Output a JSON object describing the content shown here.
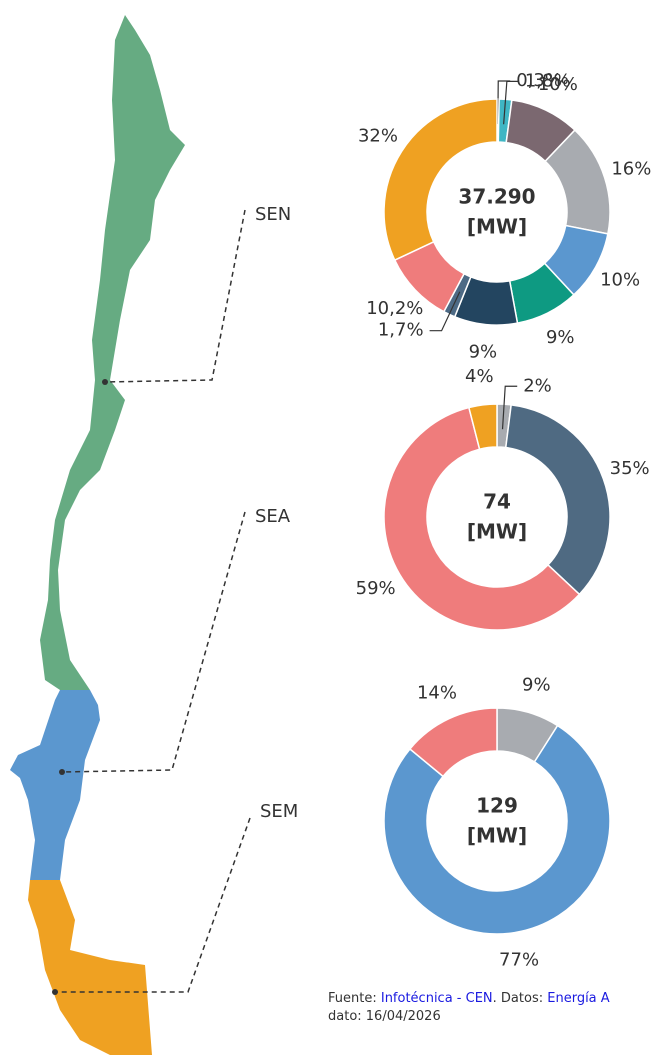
{
  "chart_data": [
    {
      "type": "donut",
      "title": "SEN",
      "center_text": [
        "37.290",
        "[MW]"
      ],
      "values": [
        0.3,
        1.8,
        10,
        16,
        10,
        9,
        9,
        1.7,
        10.2,
        32
      ],
      "value_labels": [
        "0,3%",
        "1,8%",
        "10%",
        "16%",
        "10%",
        "9%",
        "9%",
        "1,7%",
        "10,2%",
        "32%"
      ],
      "colors": [
        "#e8d27a",
        "#3fb6c4",
        "#7b6870",
        "#a8abb0",
        "#5b97cf",
        "#0e9a82",
        "#234560",
        "#4d6a85",
        "#ef7c7c",
        "#efa122"
      ]
    },
    {
      "type": "donut",
      "title": "SEA",
      "center_text": [
        "74",
        "[MW]"
      ],
      "values": [
        2,
        35,
        59,
        4
      ],
      "value_labels": [
        "2%",
        "35%",
        "59%",
        "4%"
      ],
      "colors": [
        "#a8abb0",
        "#4f6a82",
        "#ef7c7c",
        "#efa122"
      ]
    },
    {
      "type": "donut",
      "title": "SEM",
      "center_text": [
        "129",
        "[MW]"
      ],
      "values": [
        9,
        77,
        14
      ],
      "value_labels": [
        "9%",
        "77%",
        "14%"
      ],
      "colors": [
        "#a8abb0",
        "#5b97cf",
        "#ef7c7c"
      ]
    }
  ],
  "footer": {
    "source_label": "Fuente:",
    "source": "Infotécnica - CEN",
    "data_label": ". Datos:",
    "data": "Energía A",
    "date": "dato: 16/04/2026"
  }
}
